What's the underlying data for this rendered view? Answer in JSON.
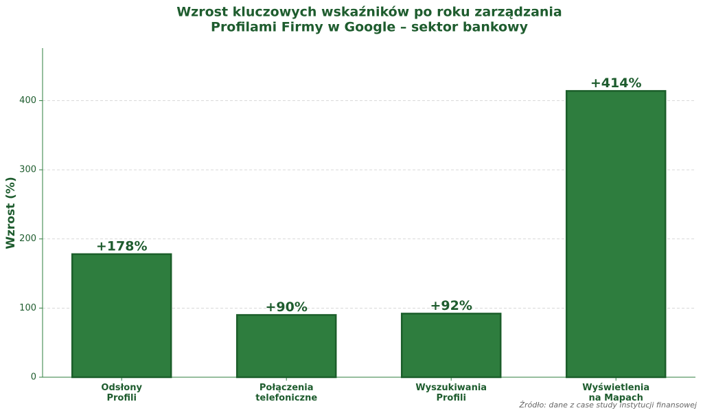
{
  "chart_data": {
    "type": "bar",
    "title": [
      "Wzrost kluczowych wskaźników po roku zarządzania",
      "Profilami Firmy w Google – sektor bankowy"
    ],
    "ylabel": "Wzrost (%)",
    "categories": [
      "Odsłony\nProfili",
      "Połączenia\ntelefoniczne",
      "Wyszukiwania\nProfili",
      "Wyświetlenia\nna Mapach"
    ],
    "values": [
      178,
      90,
      92,
      414
    ],
    "value_labels": [
      "+178%",
      "+90%",
      "+92%",
      "+414%"
    ],
    "color": "#2e7d3e",
    "edgecolor": "#1b5e2a",
    "ylim": [
      0,
      476
    ],
    "yticks": [
      0,
      100,
      200,
      300,
      400
    ],
    "grid": true,
    "source": "Źródło: dane z case study instytucji finansowej"
  }
}
